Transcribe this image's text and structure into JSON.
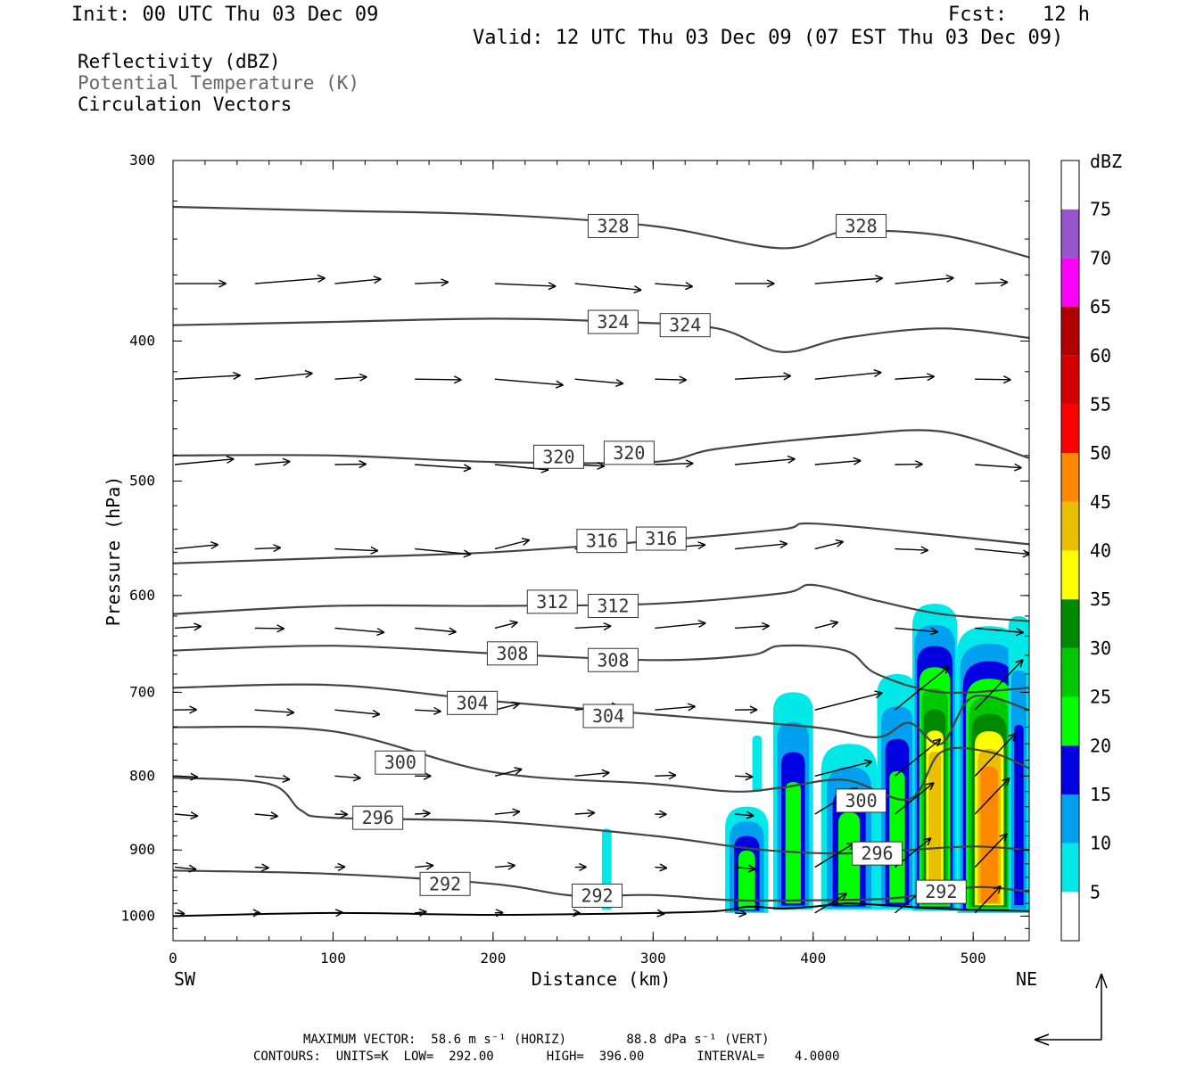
{
  "header": {
    "init": "Init: 00 UTC Thu 03 Dec 09",
    "fcst": "Fcst:   12 h",
    "valid": "Valid: 12 UTC Thu 03 Dec 09 (07 EST Thu 03 Dec 09)"
  },
  "fields": {
    "reflectivity": "Reflectivity (dBZ)",
    "theta": "Potential Temperature (K)",
    "vectors": "Circulation Vectors"
  },
  "footer": {
    "max_vector": "MAXIMUM VECTOR:  58.6 m s⁻¹ (HORIZ)        88.8 dPa s⁻¹ (VERT)",
    "contours": "CONTOURS:  UNITS=K  LOW=  292.00       HIGH=  396.00       INTERVAL=    4.0000"
  },
  "colors": {
    "contour": "#444444",
    "levels": [
      "#ffffff",
      "#00e8e8",
      "#00a0f0",
      "#0000e0",
      "#00ff00",
      "#00c800",
      "#008800",
      "#ffff00",
      "#e8c000",
      "#ff8800",
      "#ff0000",
      "#d40000",
      "#b00000",
      "#ff00ff",
      "#9955cc",
      "#ffffff"
    ]
  },
  "chart_data": {
    "type": "heatmap",
    "xlabel": "Distance (km)",
    "ylabel": "Pressure (hPa)",
    "xlim": [
      0,
      535
    ],
    "ylim": [
      1040,
      300
    ],
    "y_scale": "log",
    "x_ticks": [
      0,
      100,
      200,
      300,
      400,
      500
    ],
    "y_ticks": [
      300,
      400,
      500,
      600,
      700,
      800,
      900,
      1000
    ],
    "x_end_labels": {
      "left": "SW",
      "right": "NE"
    },
    "colorbar": {
      "unit": "dBZ",
      "labels": [
        5,
        10,
        15,
        20,
        25,
        30,
        35,
        40,
        45,
        50,
        55,
        60,
        65,
        70,
        75
      ]
    },
    "theta_contours": [
      {
        "value": 328,
        "x": [
          0,
          100,
          200,
          300,
          380,
          420,
          480,
          535
        ],
        "p": [
          323,
          325,
          327,
          333,
          345,
          336,
          338,
          350
        ],
        "labels": [
          [
            275,
            333
          ],
          [
            430,
            333
          ]
        ]
      },
      {
        "value": 324,
        "x": [
          0,
          100,
          200,
          280,
          340,
          380,
          420,
          480,
          535
        ],
        "p": [
          390,
          388,
          386,
          388,
          392,
          407,
          398,
          392,
          398
        ],
        "labels": [
          [
            275,
            388
          ],
          [
            320,
            390
          ]
        ]
      },
      {
        "value": 320,
        "x": [
          0,
          100,
          200,
          300,
          340,
          420,
          480,
          535
        ],
        "p": [
          480,
          480,
          485,
          485,
          475,
          465,
          462,
          482
        ],
        "labels": [
          [
            241,
            481
          ],
          [
            285,
            478
          ]
        ]
      },
      {
        "value": 316,
        "x": [
          0,
          100,
          200,
          300,
          380,
          400,
          480,
          535
        ],
        "p": [
          570,
          565,
          560,
          550,
          540,
          535,
          545,
          553
        ],
        "labels": [
          [
            268,
            550
          ],
          [
            305,
            548
          ]
        ]
      },
      {
        "value": 312,
        "x": [
          0,
          100,
          200,
          300,
          380,
          400,
          440,
          480,
          535
        ],
        "p": [
          618,
          610,
          610,
          608,
          598,
          590,
          605,
          618,
          625
        ],
        "labels": [
          [
            237,
            606
          ],
          [
            275,
            610
          ]
        ]
      },
      {
        "value": 308,
        "x": [
          0,
          100,
          200,
          300,
          360,
          380,
          420,
          440,
          480,
          535
        ],
        "p": [
          655,
          650,
          658,
          665,
          660,
          650,
          655,
          680,
          700,
          695
        ],
        "labels": [
          [
            212,
            658
          ],
          [
            275,
            665
          ]
        ]
      },
      {
        "value": 304,
        "x": [
          0,
          100,
          200,
          300,
          400,
          440,
          460,
          480,
          500,
          535
        ],
        "p": [
          695,
          692,
          710,
          725,
          740,
          752,
          735,
          760,
          705,
          720
        ],
        "labels": [
          [
            187,
            712
          ],
          [
            272,
            727
          ]
        ]
      },
      {
        "value": 300,
        "x": [
          0,
          100,
          200,
          300,
          350,
          380,
          420,
          460,
          480,
          510,
          535
        ],
        "p": [
          740,
          745,
          795,
          810,
          820,
          815,
          805,
          830,
          770,
          770,
          790
        ],
        "labels": [
          [
            142,
            783
          ],
          [
            430,
            832
          ]
        ]
      },
      {
        "value": 296,
        "x": [
          0,
          60,
          80,
          100,
          200,
          300,
          350,
          380,
          420,
          460,
          500,
          535
        ],
        "p": [
          802,
          810,
          845,
          855,
          860,
          880,
          895,
          902,
          905,
          900,
          895,
          900
        ],
        "labels": [
          [
            128,
            855
          ],
          [
            440,
            905
          ]
        ]
      },
      {
        "value": 292,
        "x": [
          0,
          100,
          200,
          250,
          300,
          350,
          400,
          450,
          500,
          535
        ],
        "p": [
          930,
          935,
          950,
          968,
          967,
          975,
          975,
          972,
          955,
          962
        ],
        "labels": [
          [
            170,
            950
          ],
          [
            265,
            968
          ],
          [
            480,
            962
          ]
        ]
      }
    ],
    "surface": {
      "x": [
        0,
        100,
        200,
        300,
        340,
        360,
        380,
        400,
        420,
        440,
        470,
        500,
        535
      ],
      "p": [
        1000,
        995,
        998,
        995,
        992,
        985,
        988,
        985,
        980,
        982,
        987,
        990,
        992
      ]
    },
    "reflectivity_cores": [
      {
        "x0": 268,
        "x1": 274,
        "ptop": 870,
        "pbot": 990,
        "max_dbz": 5
      },
      {
        "x0": 362,
        "x1": 368,
        "ptop": 750,
        "pbot": 820,
        "max_dbz": 5
      },
      {
        "x0": 345,
        "x1": 372,
        "ptop": 840,
        "pbot": 995,
        "max_dbz": 20
      },
      {
        "x0": 375,
        "x1": 400,
        "ptop": 700,
        "pbot": 990,
        "max_dbz": 20
      },
      {
        "x0": 405,
        "x1": 440,
        "ptop": 760,
        "pbot": 990,
        "max_dbz": 20
      },
      {
        "x0": 440,
        "x1": 465,
        "ptop": 680,
        "pbot": 990,
        "max_dbz": 20
      },
      {
        "x0": 462,
        "x1": 490,
        "ptop": 608,
        "pbot": 992,
        "max_dbz": 40
      },
      {
        "x0": 490,
        "x1": 530,
        "ptop": 630,
        "pbot": 995,
        "max_dbz": 45
      },
      {
        "x0": 522,
        "x1": 535,
        "ptop": 620,
        "pbot": 995,
        "max_dbz": 15
      }
    ]
  }
}
